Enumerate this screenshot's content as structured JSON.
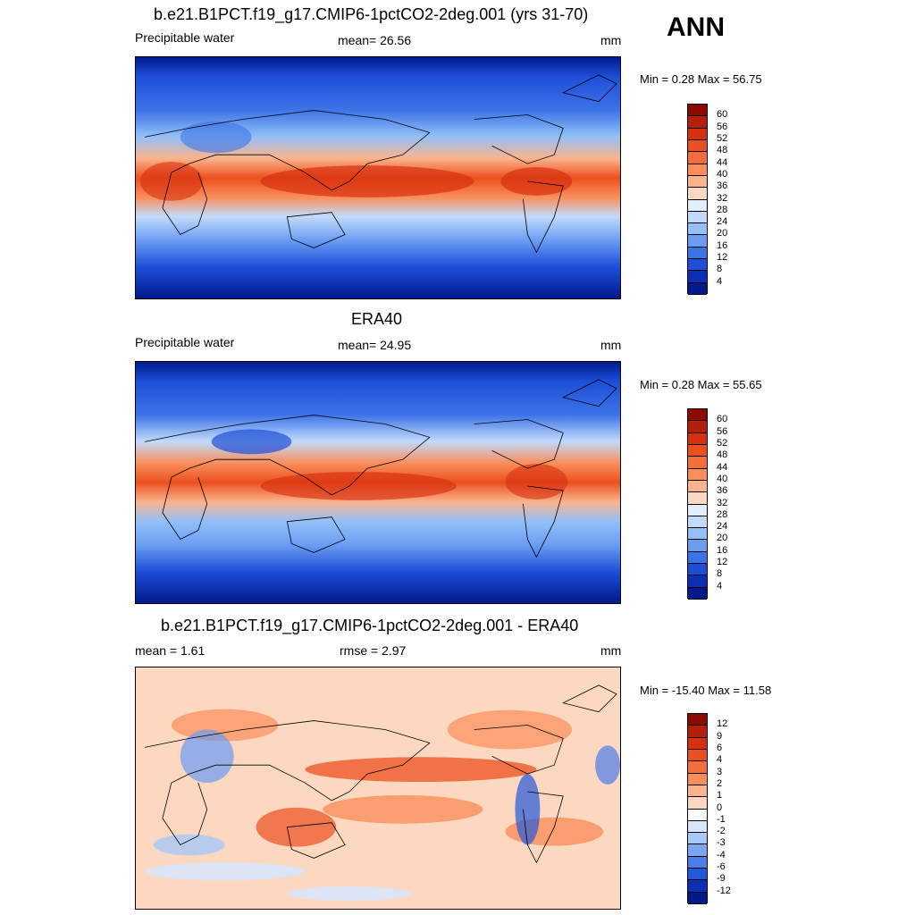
{
  "header": {
    "season": "ANN"
  },
  "panels": [
    {
      "title": "b.e21.B1PCT.f19_g17.CMIP6-1pctCO2-2deg.001 (yrs 31-70)",
      "left": "Precipitable water",
      "center": "mean=  26.56",
      "units": "mm",
      "minmax": "Min =   0.28 Max =  56.75",
      "colorbar": {
        "labels": [
          "60",
          "56",
          "52",
          "48",
          "44",
          "40",
          "36",
          "32",
          "28",
          "24",
          "20",
          "16",
          "12",
          "8",
          "4"
        ],
        "colors": [
          "#8c0a00",
          "#b41e0a",
          "#d7300f",
          "#eb501e",
          "#f46d3c",
          "#f98e5a",
          "#fbb38c",
          "#fdd8c0",
          "#e3eefa",
          "#c2dafa",
          "#94c0f8",
          "#6a9cf2",
          "#3c74e8",
          "#1d4ed8",
          "#0c2fb4",
          "#001a8c"
        ]
      }
    },
    {
      "title": "ERA40",
      "left": "Precipitable water",
      "center": "mean=  24.95",
      "units": "mm",
      "minmax": "Min =   0.28 Max =  55.65",
      "colorbar": {
        "labels": [
          "60",
          "56",
          "52",
          "48",
          "44",
          "40",
          "36",
          "32",
          "28",
          "24",
          "20",
          "16",
          "12",
          "8",
          "4"
        ],
        "colors": [
          "#8c0a00",
          "#b41e0a",
          "#d7300f",
          "#eb501e",
          "#f46d3c",
          "#f98e5a",
          "#fbb38c",
          "#fdd8c0",
          "#e3eefa",
          "#c2dafa",
          "#94c0f8",
          "#6a9cf2",
          "#3c74e8",
          "#1d4ed8",
          "#0c2fb4",
          "#001a8c"
        ]
      }
    },
    {
      "title": "b.e21.B1PCT.f19_g17.CMIP6-1pctCO2-2deg.001 - ERA40",
      "left": "mean =   1.61",
      "center": "rmse =   2.97",
      "units": "mm",
      "minmax": "Min = -15.40 Max =  11.58",
      "colorbar": {
        "labels": [
          "12",
          "9",
          "6",
          "4",
          "3",
          "2",
          "1",
          "0",
          "-1",
          "-2",
          "-3",
          "-4",
          "-6",
          "-9",
          "-12"
        ],
        "colors": [
          "#8c0a00",
          "#b41e0a",
          "#d7300f",
          "#eb501e",
          "#f46d3c",
          "#f98e5a",
          "#fbb38c",
          "#fdd8c0",
          "#ffffff",
          "#d6e6fa",
          "#a8c8f8",
          "#7aa6f2",
          "#4c7ee8",
          "#2458da",
          "#0c30b4",
          "#001a8c"
        ]
      }
    }
  ]
}
